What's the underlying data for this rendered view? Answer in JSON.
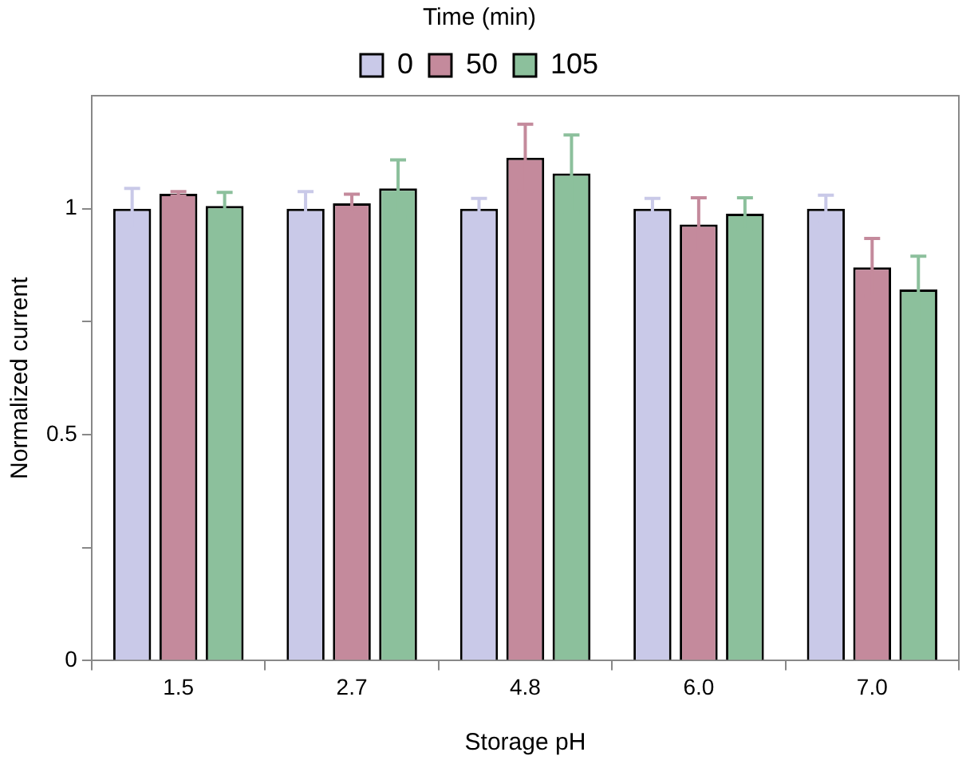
{
  "chart_data": {
    "type": "bar",
    "xlabel": "Storage pH",
    "ylabel": "Normalized current",
    "legend_title": "Time (min)",
    "legend": "top",
    "categories": [
      "1.5",
      "2.7",
      "4.8",
      "6.0",
      "7.0"
    ],
    "series": [
      {
        "name": "0",
        "color": "#c9c9e8",
        "values": [
          1.0,
          1.0,
          1.0,
          1.0,
          1.0
        ],
        "errors": [
          0.045,
          0.038,
          0.023,
          0.023,
          0.03
        ]
      },
      {
        "name": "50",
        "color": "#c48a9c",
        "values": [
          1.033,
          1.012,
          1.113,
          0.965,
          0.87
        ],
        "errors": [
          0.005,
          0.02,
          0.074,
          0.059,
          0.064
        ]
      },
      {
        "name": "105",
        "color": "#8cc09c",
        "values": [
          1.006,
          1.045,
          1.078,
          0.989,
          0.821
        ],
        "errors": [
          0.03,
          0.063,
          0.085,
          0.035,
          0.074
        ]
      }
    ],
    "ylim": [
      0,
      1.25
    ],
    "yticks": [
      0,
      {
        "value": 0.25,
        "label": null
      },
      0.5,
      {
        "value": 0.75,
        "label": null
      },
      1
    ],
    "grid": false
  }
}
